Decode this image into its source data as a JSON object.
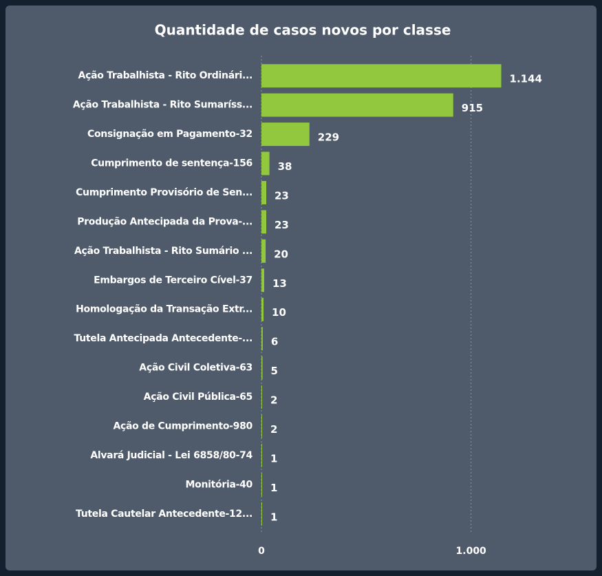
{
  "chart_data": {
    "type": "bar",
    "orientation": "horizontal",
    "title": "Quantidade de casos novos por classe",
    "categories": [
      "Ação Trabalhista - Rito Ordinári...",
      "Ação Trabalhista - Rito Sumaríss...",
      "Consignação em Pagamento-32",
      "Cumprimento de sentença-156",
      "Cumprimento Provisório de Sen...",
      "Produção Antecipada da Prova-...",
      "Ação Trabalhista - Rito Sumário ...",
      "Embargos de Terceiro Cível-37",
      "Homologação da Transação Extr...",
      "Tutela Antecipada Antecedente-...",
      "Ação Civil Coletiva-63",
      "Ação Civil Pública-65",
      "Ação de Cumprimento-980",
      "Alvará Judicial - Lei 6858/80-74",
      "Monitória-40",
      "Tutela Cautelar Antecedente-12..."
    ],
    "values": [
      1144,
      915,
      229,
      38,
      23,
      23,
      20,
      13,
      10,
      6,
      5,
      2,
      2,
      1,
      1,
      1
    ],
    "value_labels": [
      "1.144",
      "915",
      "229",
      "38",
      "23",
      "23",
      "20",
      "13",
      "10",
      "6",
      "5",
      "2",
      "2",
      "1",
      "1",
      "1"
    ],
    "color": "#92c83e",
    "xlim": [
      0,
      1500
    ],
    "xticks": [
      0,
      {
        "value": 1000,
        "label": "1.000"
      }
    ],
    "grid": true
  }
}
